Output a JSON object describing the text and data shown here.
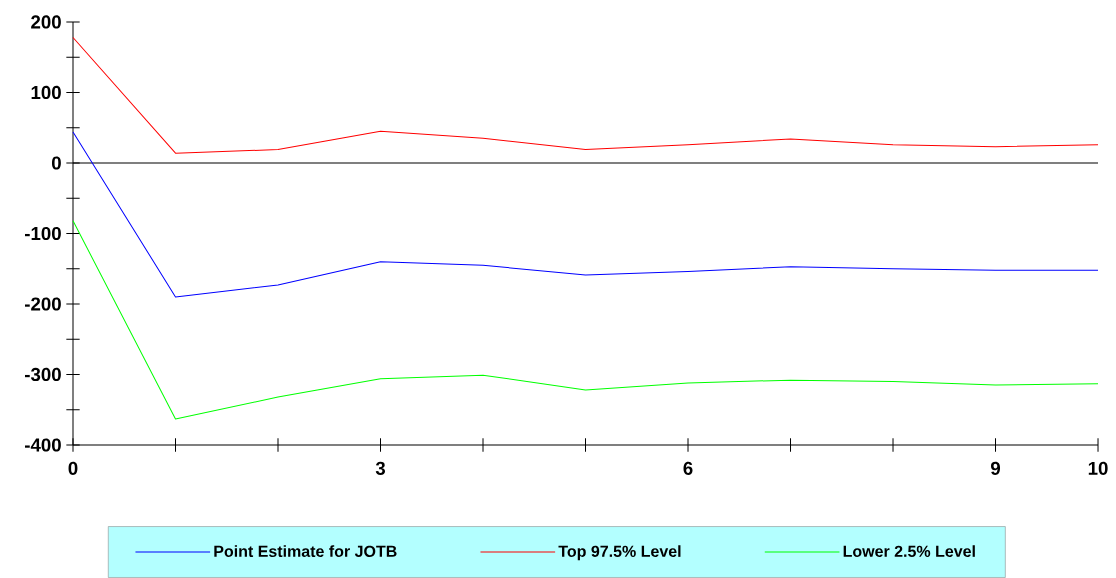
{
  "chart_data": {
    "type": "line",
    "x": [
      0,
      1,
      2,
      3,
      4,
      5,
      6,
      7,
      8,
      9,
      10
    ],
    "series": [
      {
        "name": "Point Estimate for JOTB",
        "color": "#0000ff",
        "values": [
          44,
          -190,
          -173,
          -140,
          -145,
          -159,
          -154,
          -147,
          -150,
          -152,
          -152
        ]
      },
      {
        "name": "Top 97.5% Level",
        "color": "#ff0000",
        "values": [
          178,
          14,
          19,
          45,
          35,
          19,
          26,
          34,
          26,
          23,
          26
        ]
      },
      {
        "name": "Lower 2.5% Level",
        "color": "#00ff00",
        "values": [
          -82,
          -363,
          -332,
          -306,
          -301,
          -322,
          -312,
          -308,
          -310,
          -315,
          -313
        ]
      }
    ],
    "xlim": [
      0,
      10
    ],
    "xticks": [
      0,
      {
        "value": 1,
        "label": null
      },
      {
        "value": 2,
        "label": null
      },
      3,
      {
        "value": 4,
        "label": null
      },
      {
        "value": 5,
        "label": null
      },
      6,
      {
        "value": 7,
        "label": null
      },
      {
        "value": 8,
        "label": null
      },
      9,
      10
    ],
    "ylim": [
      -400,
      200
    ],
    "yticks": [
      -400,
      {
        "value": -350,
        "label": null
      },
      -300,
      {
        "value": -250,
        "label": null
      },
      -200,
      {
        "value": -150,
        "label": null
      },
      -100,
      {
        "value": -50,
        "label": null
      },
      0,
      {
        "value": 50,
        "label": null
      },
      100,
      {
        "value": 150,
        "label": null
      },
      200
    ],
    "ref_lines": [
      {
        "axis": "y",
        "value": 0,
        "color": "#000000"
      }
    ],
    "legend": "bottom"
  }
}
